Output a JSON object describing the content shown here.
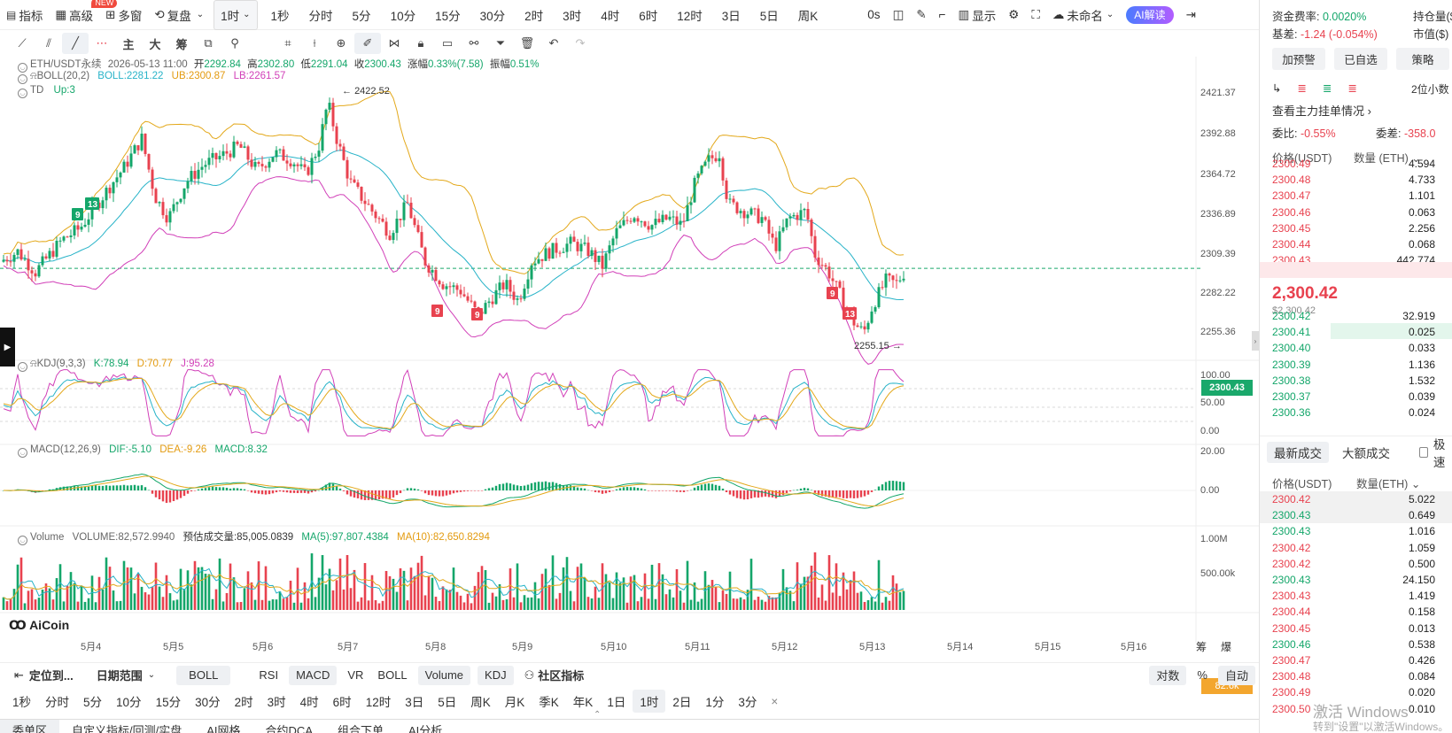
{
  "toolbar": {
    "indicator": "指标",
    "new_badge": "NEW",
    "advanced": "高级",
    "multi_window": "多窗",
    "replay": "复盘",
    "interval_select": "1时",
    "timeframes": [
      "1秒",
      "分时",
      "5分",
      "10分",
      "15分",
      "30分",
      "2时",
      "3时",
      "4时",
      "6时",
      "12时",
      "3日",
      "5日",
      "周K"
    ],
    "countdown": "0s",
    "display": "显示",
    "unnamed": "未命名",
    "ai_read": "AI解读"
  },
  "drawtools": {
    "zhu": "主",
    "da": "大",
    "chou": "筹"
  },
  "legend": {
    "pair": "ETH/USDT永续",
    "time": "2026-05-13 11:00",
    "open_label": "开",
    "open": "2292.84",
    "high_label": "高",
    "high": "2302.80",
    "low_label": "低",
    "low": "2291.04",
    "close_label": "收",
    "close": "2300.43",
    "chg_label": "涨幅",
    "chg": "0.33%(7.58)",
    "amp_label": "振幅",
    "amp": "0.51%",
    "boll_name": "BOLL(20,2)",
    "boll": "BOLL:2281.22",
    "ub": "UB:2300.87",
    "lb": "LB:2261.57",
    "td_name": "TD",
    "td": "Up:3",
    "kdj_name": "KDJ(9,3,3)",
    "k": "K:78.94",
    "d": "D:70.77",
    "j": "J:95.28",
    "macd_name": "MACD(12,26,9)",
    "dif": "DIF:-5.10",
    "dea": "DEA:-9.26",
    "macd": "MACD:8.32",
    "vol_name": "Volume",
    "vol": "VOLUME:82,572.9940",
    "vol_est": "预估成交量:85,005.0839",
    "ma5": "MA(5):97,807.4384",
    "ma10": "MA(10):82,650.8294"
  },
  "price_axis": [
    "2421.37",
    "2392.88",
    "2364.72",
    "2336.89",
    "2309.39",
    "2282.22",
    "2255.36"
  ],
  "current_price_tag": "2300.43",
  "kdj_axis": [
    "100.00",
    "50.00",
    "0.00"
  ],
  "macd_axis": [
    "20.00",
    "0.00"
  ],
  "vol_axis": [
    "1.00M",
    "500.00k"
  ],
  "vol_tag": "82.6k",
  "high_marker": "2422.52",
  "low_marker": "2255.15",
  "td_marks": [
    {
      "t": "9",
      "c": "g"
    },
    {
      "t": "13",
      "c": "g"
    },
    {
      "t": "9",
      "c": "r"
    },
    {
      "t": "9",
      "c": "r"
    },
    {
      "t": "9",
      "c": "r"
    },
    {
      "t": "13",
      "c": "r"
    }
  ],
  "date_axis": [
    "5月4",
    "5月5",
    "5月6",
    "5月7",
    "5月8",
    "5月9",
    "5月10",
    "5月11",
    "5月12",
    "5月13",
    "5月14",
    "5月15",
    "5月16"
  ],
  "date_axis_right": {
    "chou": "筹",
    "bao": "爆"
  },
  "logo": "AiCoin",
  "bottom_bar": {
    "locate": "定位到...",
    "date_range": "日期范围",
    "boll_pill": "BOLL",
    "indicators": [
      "RSI",
      "MACD",
      "VR",
      "BOLL",
      "Volume",
      "KDJ"
    ],
    "community": "社区指标",
    "log": "对数",
    "pct": "%",
    "auto": "自动"
  },
  "bottom_tf": [
    "1秒",
    "分时",
    "5分",
    "10分",
    "15分",
    "30分",
    "2时",
    "3时",
    "4时",
    "6时",
    "12时",
    "3日",
    "5日",
    "周K",
    "月K",
    "季K",
    "年K",
    "1日",
    "1时",
    "2日",
    "1分",
    "3分"
  ],
  "bottom_tabs": [
    "委单区",
    "自定义指标/回测/实盘",
    "AI网格",
    "合约DCA",
    "组合下单",
    "AI分析"
  ],
  "right": {
    "funding_label": "资金费率:",
    "funding": "0.0020%",
    "basis_label": "基差:",
    "basis": "-1.24 (-0.054%)",
    "oi_label": "持仓量($)",
    "mcap_label": "市值($)",
    "btn_alert": "加预警",
    "btn_fav": "已自选",
    "btn_strategy": "策略",
    "decimals": "2位小数",
    "view_orders": "查看主力挂单情况",
    "weibi_label": "委比:",
    "weibi": "-0.55%",
    "weicha_label": "委差:",
    "weicha": "-358.0",
    "ob_price_h": "价格(USDT)",
    "ob_qty_h": "数量 (ETH)",
    "asks": [
      [
        "2300.49",
        "4.594"
      ],
      [
        "2300.48",
        "4.733"
      ],
      [
        "2300.47",
        "1.101"
      ],
      [
        "2300.46",
        "0.063"
      ],
      [
        "2300.45",
        "2.256"
      ],
      [
        "2300.44",
        "0.068"
      ],
      [
        "2300.43",
        "442.774"
      ]
    ],
    "last_price": "2,300.42",
    "last_usd": "$2,300.42",
    "bids": [
      [
        "2300.42",
        "32.919"
      ],
      [
        "2300.41",
        "0.025"
      ],
      [
        "2300.40",
        "0.033"
      ],
      [
        "2300.39",
        "1.136"
      ],
      [
        "2300.38",
        "1.532"
      ],
      [
        "2300.37",
        "0.039"
      ],
      [
        "2300.36",
        "0.024"
      ]
    ],
    "tab_latest": "最新成交",
    "tab_large": "大额成交",
    "tab_fast": "极速",
    "tr_price_h": "价格(USDT)",
    "tr_qty_h": "数量(ETH)",
    "trades": [
      [
        "2300.42",
        "5.022",
        "r"
      ],
      [
        "2300.43",
        "0.649",
        "g"
      ],
      [
        "2300.43",
        "1.016",
        "g"
      ],
      [
        "2300.42",
        "1.059",
        "r"
      ],
      [
        "2300.42",
        "0.500",
        "r"
      ],
      [
        "2300.43",
        "24.150",
        "g"
      ],
      [
        "2300.43",
        "1.419",
        "r"
      ],
      [
        "2300.44",
        "0.158",
        "r"
      ],
      [
        "2300.45",
        "0.013",
        "r"
      ],
      [
        "2300.46",
        "0.538",
        "g"
      ],
      [
        "2300.47",
        "0.426",
        "r"
      ],
      [
        "2300.48",
        "0.084",
        "r"
      ],
      [
        "2300.49",
        "0.020",
        "r"
      ],
      [
        "2300.50",
        "0.010",
        "r"
      ]
    ]
  },
  "watermark": {
    "line1": "激活 Windows",
    "line2": "转到\"设置\"以激活Windows。"
  },
  "colors": {
    "up": "#14a66a",
    "down": "#e8424f",
    "boll_mid": "#27b3c8",
    "boll_ub": "#e3a81a",
    "boll_lb": "#d13fb8",
    "price_line": "#1aa86b"
  }
}
